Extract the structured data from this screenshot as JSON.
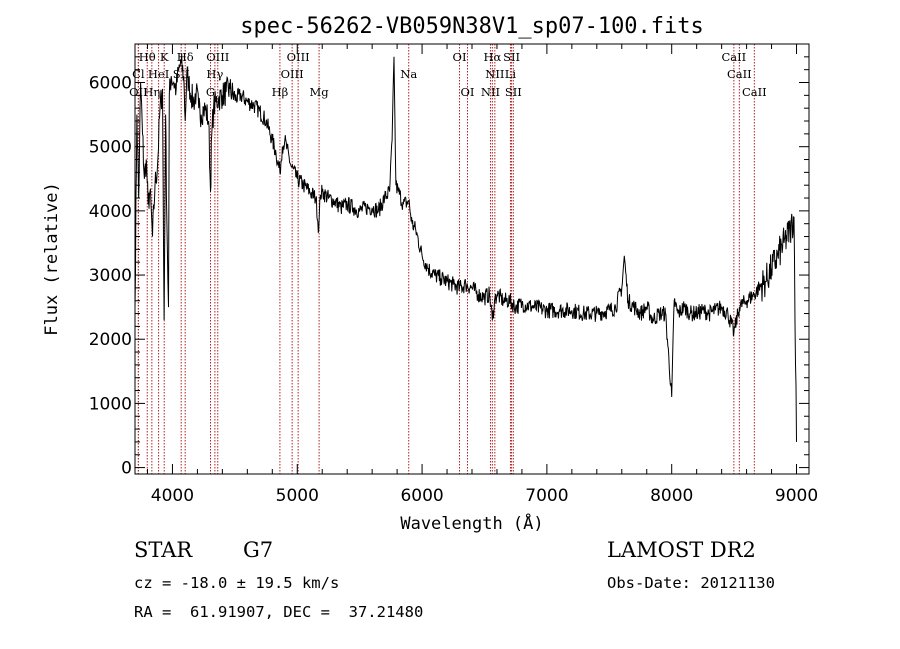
{
  "chart_data": {
    "type": "line",
    "title": "spec-56262-VB059N38V1_sp07-100.fits",
    "xlabel": "Wavelength (Å)",
    "ylabel": "Flux (relative)",
    "xlim": [
      3700,
      9100
    ],
    "ylim": [
      -100,
      6600
    ],
    "xticks": [
      4000,
      5000,
      6000,
      7000,
      8000,
      9000
    ],
    "yticks": [
      0,
      1000,
      2000,
      3000,
      4000,
      5000,
      6000
    ],
    "series": [
      {
        "x": [
          3700,
          3715,
          3730,
          3745,
          3760,
          3775,
          3790,
          3805,
          3820,
          3840,
          3860,
          3880,
          3900,
          3920,
          3933,
          3945,
          3955,
          3968,
          3975,
          3990,
          4010,
          4030,
          4050,
          4070,
          4090,
          4102,
          4115,
          4130,
          4150,
          4170,
          4190,
          4210,
          4230,
          4250,
          4270,
          4290,
          4305,
          4315,
          4330,
          4350,
          4370,
          4400,
          4430,
          4460,
          4500,
          4550,
          4600,
          4650,
          4700,
          4750,
          4800,
          4830,
          4861,
          4880,
          4900,
          4950,
          5000,
          5050,
          5100,
          5150,
          5172,
          5185,
          5200,
          5250,
          5300,
          5350,
          5400,
          5450,
          5500,
          5550,
          5600,
          5650,
          5700,
          5740,
          5760,
          5775,
          5790,
          5810,
          5850,
          5893,
          5920,
          5950,
          6000,
          6050,
          6100,
          6150,
          6200,
          6250,
          6300,
          6350,
          6400,
          6450,
          6500,
          6540,
          6563,
          6580,
          6600,
          6650,
          6700,
          6750,
          6800,
          6900,
          7000,
          7100,
          7200,
          7300,
          7400,
          7500,
          7550,
          7600,
          7620,
          7650,
          7700,
          7750,
          7800,
          7850,
          7900,
          7950,
          8000,
          8020,
          8050,
          8100,
          8150,
          8200,
          8250,
          8300,
          8350,
          8400,
          8450,
          8498,
          8542,
          8600,
          8662,
          8700,
          8750,
          8800,
          8850,
          8900,
          8950,
          8980,
          9000
        ],
        "y": [
          2500,
          5500,
          4200,
          6000,
          5200,
          4500,
          4800,
          4100,
          4300,
          3600,
          4400,
          4700,
          5600,
          5900,
          2300,
          5500,
          3900,
          2500,
          5800,
          6100,
          6000,
          5900,
          6200,
          6300,
          6100,
          5400,
          6150,
          6000,
          5800,
          5700,
          5850,
          5600,
          5500,
          5600,
          5550,
          5400,
          4300,
          5200,
          5600,
          5700,
          5750,
          5800,
          5850,
          5900,
          5750,
          5800,
          5700,
          5650,
          5550,
          5400,
          5100,
          4900,
          4600,
          5000,
          5100,
          4700,
          4500,
          4400,
          4300,
          4200,
          3700,
          4250,
          4300,
          4200,
          4150,
          4050,
          4100,
          4050,
          4000,
          4050,
          4050,
          4000,
          4200,
          4300,
          5100,
          6400,
          4400,
          4300,
          4100,
          4150,
          3800,
          3700,
          3300,
          3100,
          3000,
          2950,
          2900,
          2850,
          2800,
          2850,
          2800,
          2700,
          2650,
          2700,
          2300,
          2600,
          2700,
          2600,
          2600,
          2500,
          2550,
          2500,
          2450,
          2450,
          2450,
          2400,
          2400,
          2450,
          2500,
          2800,
          3300,
          2600,
          2500,
          2400,
          2500,
          2300,
          2400,
          2400,
          1100,
          2600,
          2400,
          2500,
          2400,
          2400,
          2450,
          2400,
          2450,
          2500,
          2400,
          2100,
          2500,
          2600,
          2700,
          2800,
          2900,
          3100,
          3300,
          3500,
          3700,
          3900,
          400
        ]
      }
    ],
    "lines_row1": [
      {
        "label": "Hθ",
        "x": 3798
      },
      {
        "label": "K",
        "x": 3934
      },
      {
        "label": "Hδ",
        "x": 4102
      },
      {
        "label": "OIII",
        "x": 4363
      },
      {
        "label": "OIII",
        "x": 5007
      },
      {
        "label": "OI",
        "x": 6300
      },
      {
        "label": "Hα",
        "x": 6563
      },
      {
        "label": "SII",
        "x": 6717
      },
      {
        "label": "CaII",
        "x": 8498
      }
    ],
    "lines_row2": [
      {
        "label": "Cl",
        "x": 3727
      },
      {
        "label": "HeI",
        "x": 3889
      },
      {
        "label": "SII",
        "x": 4070
      },
      {
        "label": "Hγ",
        "x": 4340
      },
      {
        "label": "OIII",
        "x": 4959
      },
      {
        "label": "Na",
        "x": 5893
      },
      {
        "label": "NII",
        "x": 6583
      },
      {
        "label": "Li",
        "x": 6708
      },
      {
        "label": "CaII",
        "x": 8542
      }
    ],
    "lines_row3": [
      {
        "label": "OII",
        "x": 3727
      },
      {
        "label": "Hη",
        "x": 3835
      },
      {
        "label": "G",
        "x": 4305
      },
      {
        "label": "Hβ",
        "x": 4861
      },
      {
        "label": "Mg",
        "x": 5175
      },
      {
        "label": "OI",
        "x": 6364
      },
      {
        "label": "NII",
        "x": 6548
      },
      {
        "label": "SII",
        "x": 6731
      },
      {
        "label": "CaII",
        "x": 8662
      }
    ],
    "line_color": "#000000",
    "marker_color": "#b22222"
  },
  "info": {
    "class_label": "STAR",
    "subclass": "G7",
    "survey": "LAMOST DR2",
    "cz_text": "cz = -18.0 ± 19.5 km/s",
    "obs_date": "Obs-Date: 20121130",
    "coords": "RA =  61.91907, DEC =  37.21480"
  }
}
